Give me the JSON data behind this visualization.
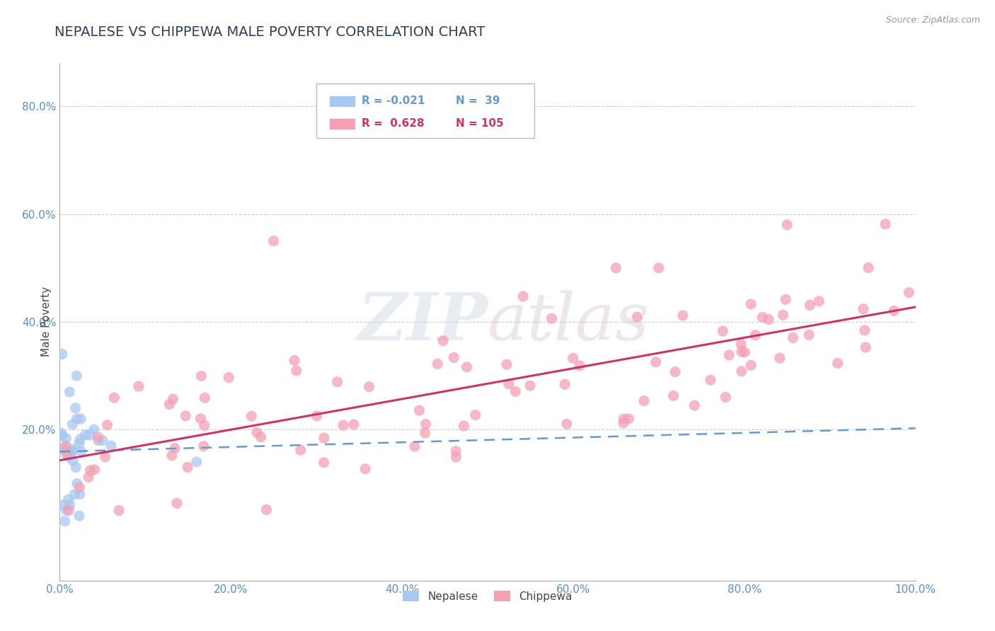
{
  "title": "NEPALESE VS CHIPPEWA MALE POVERTY CORRELATION CHART",
  "source": "Source: ZipAtlas.com",
  "xlabel_ticks": [
    "0.0%",
    "20.0%",
    "40.0%",
    "60.0%",
    "80.0%",
    "100.0%"
  ],
  "xlabel_vals": [
    0,
    20,
    40,
    60,
    80,
    100
  ],
  "ylabel": "Male Poverty",
  "ylabel_ticks": [
    "20.0%",
    "40.0%",
    "60.0%",
    "80.0%"
  ],
  "ylabel_vals": [
    20,
    40,
    60,
    80
  ],
  "xlim": [
    0,
    100
  ],
  "ylim": [
    -8,
    88
  ],
  "title_color": "#2e4057",
  "title_fontsize": 14,
  "background_color": "#ffffff",
  "nepalese_color": "#a8c8f0",
  "chippewa_color": "#f4a0b5",
  "nepalese_line_color": "#6699cc",
  "chippewa_line_color": "#cc3366",
  "legend_R_nepalese": "-0.021",
  "legend_N_nepalese": "39",
  "legend_R_chippewa": "0.628",
  "legend_N_chippewa": "105"
}
